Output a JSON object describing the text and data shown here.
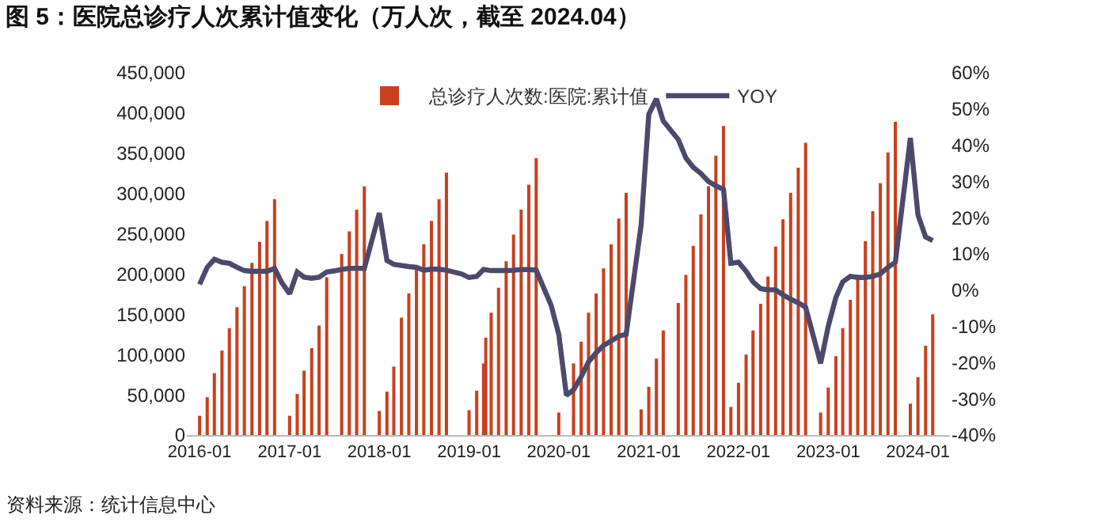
{
  "chart_data": {
    "type": "bar",
    "title": "图 5：医院总诊疗人次累计值变化（万人次，截至 2024.04）",
    "annotations": [
      "资料来源：统计信息中心"
    ],
    "x": [
      "2016-01",
      "2016-02",
      "2016-03",
      "2016-04",
      "2016-05",
      "2016-06",
      "2016-07",
      "2016-08",
      "2016-09",
      "2016-10",
      "2016-11",
      "2017-01",
      "2017-02",
      "2017-03",
      "2017-04",
      "2017-05",
      "2017-06",
      "2017-08",
      "2017-09",
      "2017-10",
      "2017-11",
      "2018-01",
      "2018-02",
      "2018-03",
      "2018-04",
      "2018-05",
      "2018-06",
      "2018-07",
      "2018-08",
      "2018-09",
      "2018-10",
      "2019-01",
      "2019-02",
      "2019-03-01",
      "2019-03-10",
      "2019-04",
      "2019-05",
      "2019-06",
      "2019-07",
      "2019-08",
      "2019-09",
      "2019-10",
      "2020-01",
      "2020-03",
      "2020-04",
      "2020-05",
      "2020-06",
      "2020-07",
      "2020-08",
      "2020-09",
      "2020-10",
      "2020-12",
      "2021-01",
      "2021-02",
      "2021-03",
      "2021-05",
      "2021-06",
      "2021-07",
      "2021-08",
      "2021-09",
      "2021-10",
      "2021-11",
      "2021-12",
      "2022-01",
      "2022-02",
      "2022-03",
      "2022-04",
      "2022-05",
      "2022-06",
      "2022-07",
      "2022-08",
      "2022-09",
      "2022-10",
      "2022-12",
      "2023-01",
      "2023-02",
      "2023-03",
      "2023-04",
      "2023-05",
      "2023-06",
      "2023-07",
      "2023-08",
      "2023-09",
      "2023-10",
      "2023-12",
      "2024-01",
      "2024-02",
      "2024-03"
    ],
    "series": [
      {
        "name": "总诊疗人次数:医院:累计值",
        "color": "#c8401e",
        "values": [
          24000,
          47000,
          77000,
          105000,
          133000,
          159000,
          185000,
          214000,
          240000,
          266000,
          293000,
          24000,
          51000,
          80000,
          108000,
          136000,
          196000,
          225000,
          253000,
          280000,
          309000,
          30000,
          54000,
          85000,
          146000,
          176000,
          206000,
          237000,
          266000,
          293000,
          326000,
          31000,
          55000,
          89000,
          121000,
          152000,
          183000,
          216000,
          249000,
          280000,
          311000,
          344000,
          28000,
          89000,
          116000,
          152000,
          176000,
          207000,
          237000,
          269000,
          301000,
          32000,
          60000,
          95000,
          130000,
          164000,
          199000,
          235000,
          274000,
          309000,
          347000,
          384000,
          35000,
          65000,
          100000,
          130000,
          163000,
          197000,
          234000,
          268000,
          301000,
          332000,
          363000,
          28000,
          59000,
          98000,
          133000,
          168000,
          199000,
          241000,
          278000,
          313000,
          351000,
          389000,
          39000,
          72000,
          111000,
          150000
        ]
      },
      {
        "name": "YOY",
        "color": "#4b4a6d",
        "type": "line",
        "axis": "y2",
        "x": [
          "2016-01",
          "2016-02",
          "2016-03",
          "2016-04",
          "2016-05",
          "2016-06",
          "2016-07",
          "2016-08",
          "2016-09",
          "2016-10",
          "2016-11",
          "2016-12",
          "2017-01",
          "2017-02",
          "2017-03",
          "2017-04",
          "2017-05",
          "2017-06",
          "2017-07",
          "2017-08",
          "2017-09",
          "2017-10",
          "2017-11",
          "2018-01",
          "2018-02",
          "2018-03",
          "2018-04",
          "2018-05",
          "2018-06",
          "2018-07",
          "2018-08",
          "2018-09",
          "2018-10",
          "2018-12",
          "2019-01",
          "2019-02",
          "2019-03",
          "2019-04",
          "2019-05",
          "2019-06",
          "2019-07",
          "2019-08",
          "2019-09",
          "2019-10",
          "2019-12",
          "2020-01",
          "2020-02",
          "2020-03",
          "2020-04",
          "2020-05",
          "2020-06",
          "2020-07",
          "2020-08",
          "2020-09",
          "2020-10",
          "2020-12",
          "2021-01",
          "2021-02",
          "2021-03",
          "2021-05",
          "2021-06",
          "2021-07",
          "2021-08",
          "2021-09",
          "2021-10",
          "2021-11",
          "2021-12",
          "2022-01",
          "2022-02",
          "2022-03",
          "2022-04",
          "2022-05",
          "2022-06",
          "2022-07",
          "2022-08",
          "2022-09",
          "2022-10",
          "2022-12",
          "2023-01",
          "2023-02",
          "2023-03",
          "2023-04",
          "2023-05",
          "2023-06",
          "2023-07",
          "2023-08",
          "2023-09",
          "2023-10",
          "2023-12",
          "2024-01",
          "2024-02",
          "2024-03"
        ],
        "values": [
          1.6,
          6.3,
          8.5,
          7.7,
          7.4,
          6.3,
          5.4,
          5.2,
          5.2,
          5.2,
          6,
          2,
          -1,
          5,
          3.6,
          3.3,
          3.6,
          5,
          5.3,
          5.7,
          6,
          6,
          6,
          21.3,
          8.2,
          7.1,
          6.8,
          6.5,
          6.3,
          5.5,
          5.8,
          5.8,
          5.5,
          4.5,
          3.5,
          3.8,
          5.7,
          5.4,
          5.4,
          5.4,
          5.5,
          5.7,
          5.7,
          5.5,
          -4.2,
          -12.2,
          -29,
          -27.5,
          -23.9,
          -19.8,
          -17.3,
          -15.3,
          -14,
          -12.7,
          -12.2,
          18,
          48.5,
          52.8,
          46.7,
          41.6,
          36.5,
          33.9,
          32.2,
          30,
          28.8,
          27.8,
          7.4,
          7.7,
          5.2,
          2.3,
          0.4,
          0.1,
          0.1,
          -1.3,
          -2.5,
          -3.5,
          -4.7,
          -20.2,
          -10,
          -2,
          2.3,
          3.8,
          3.5,
          3.5,
          3.8,
          4.5,
          6.3,
          7.7,
          42,
          20.8,
          14.7,
          13.7
        ]
      }
    ],
    "xlim": [
      "2015-11-10",
      "2024-05-10"
    ],
    "xticks": [
      {
        "value": "2016-01",
        "label": "2016-01"
      },
      {
        "value": "2017-01",
        "label": "2017-01"
      },
      {
        "value": "2018-01",
        "label": "2018-01"
      },
      {
        "value": "2019-01",
        "label": "2019-01"
      },
      {
        "value": "2020-01",
        "label": "2020-01"
      },
      {
        "value": "2021-01",
        "label": "2021-01"
      },
      {
        "value": "2022-01",
        "label": "2022-01"
      },
      {
        "value": "2023-01",
        "label": "2023-01"
      },
      {
        "value": "2024-01",
        "label": "2024-01"
      }
    ],
    "ylim": [
      0,
      450000
    ],
    "yticks": [
      0,
      {
        "value": 50000,
        "label": "50,000"
      },
      {
        "value": 100000,
        "label": "100,000"
      },
      {
        "value": 150000,
        "label": "150,000"
      },
      {
        "value": 200000,
        "label": "200,000"
      },
      {
        "value": 250000,
        "label": "250,000"
      },
      {
        "value": 300000,
        "label": "300,000"
      },
      {
        "value": 350000,
        "label": "350,000"
      },
      {
        "value": 400000,
        "label": "400,000"
      },
      {
        "value": 450000,
        "label": "450,000"
      }
    ],
    "y2lim": [
      -40,
      60
    ],
    "y2ticks": [
      {
        "value": -40,
        "label": "-40%"
      },
      {
        "value": -30,
        "label": "-30%"
      },
      {
        "value": -20,
        "label": "-20%"
      },
      {
        "value": -10,
        "label": "-10%"
      },
      {
        "value": 0,
        "label": "0%"
      },
      {
        "value": 10,
        "label": "10%"
      },
      {
        "value": 20,
        "label": "20%"
      },
      {
        "value": 30,
        "label": "30%"
      },
      {
        "value": 40,
        "label": "40%"
      },
      {
        "value": 50,
        "label": "50%"
      },
      {
        "value": 60,
        "label": "60%"
      }
    ],
    "legend": "top",
    "grid": false,
    "marker": "none",
    "line_style": "solid"
  }
}
